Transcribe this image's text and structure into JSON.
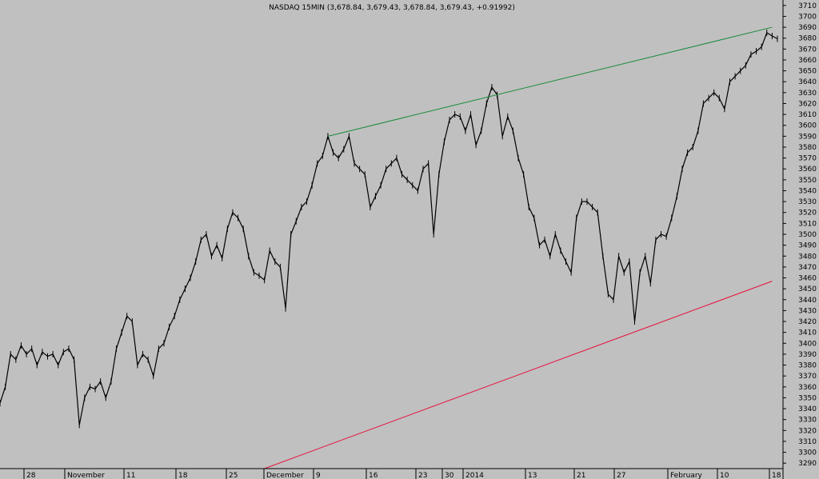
{
  "title": "NASDAQ 15MIN (3,678.84, 3,679.43, 3,678.84, 3,679.43, +0.91992)",
  "chart_data": {
    "type": "line",
    "series": [
      {
        "values": [
          3345,
          3360,
          3390,
          3385,
          3398,
          3390,
          3395,
          3380,
          3392,
          3388,
          3390,
          3380,
          3392,
          3395,
          3385,
          3325,
          3350,
          3360,
          3358,
          3365,
          3350,
          3365,
          3395,
          3410,
          3425,
          3420,
          3380,
          3390,
          3385,
          3370,
          3395,
          3400,
          3415,
          3425,
          3440,
          3450,
          3460,
          3475,
          3495,
          3500,
          3480,
          3490,
          3478,
          3505,
          3520,
          3515,
          3505,
          3480,
          3465,
          3462,
          3458,
          3485,
          3475,
          3470,
          3432,
          3500,
          3512,
          3525,
          3530,
          3545,
          3565,
          3572,
          3590,
          3575,
          3570,
          3578,
          3590,
          3565,
          3560,
          3555,
          3525,
          3535,
          3545,
          3560,
          3565,
          3570,
          3555,
          3550,
          3545,
          3540,
          3560,
          3565,
          3500,
          3555,
          3585,
          3605,
          3610,
          3608,
          3595,
          3610,
          3582,
          3595,
          3620,
          3635,
          3628,
          3590,
          3608,
          3595,
          3570,
          3555,
          3525,
          3515,
          3490,
          3495,
          3480,
          3500,
          3485,
          3475,
          3465,
          3515,
          3530,
          3530,
          3525,
          3520,
          3480,
          3445,
          3440,
          3480,
          3465,
          3475,
          3420,
          3465,
          3480,
          3455,
          3495,
          3500,
          3498,
          3515,
          3535,
          3560,
          3575,
          3580,
          3595,
          3620,
          3625,
          3630,
          3625,
          3615,
          3640,
          3645,
          3650,
          3655,
          3665,
          3668,
          3672,
          3685,
          3682,
          3679.43
        ]
      }
    ],
    "x_tick_labels": [
      "28",
      "November",
      "11",
      "18",
      "25",
      "December",
      "9",
      "16",
      "23",
      "30",
      "2014",
      "13",
      "21",
      "27",
      "February",
      "10",
      "18"
    ],
    "ylim": [
      3285,
      3715
    ],
    "y_ticks": [
      3290,
      3300,
      3310,
      3320,
      3330,
      3340,
      3350,
      3360,
      3370,
      3380,
      3390,
      3400,
      3410,
      3420,
      3430,
      3440,
      3450,
      3460,
      3470,
      3480,
      3490,
      3500,
      3510,
      3520,
      3530,
      3540,
      3550,
      3560,
      3570,
      3580,
      3590,
      3600,
      3610,
      3620,
      3630,
      3640,
      3650,
      3660,
      3670,
      3680,
      3690,
      3700,
      3710
    ],
    "trendlines": [
      {
        "color": "#1a8a3a",
        "start": {
          "x_index": 62,
          "value": 3590
        },
        "end": {
          "x_index": 146,
          "value": 3690
        }
      },
      {
        "color": "#e8103a",
        "start": {
          "x_index": 50,
          "value": 3285
        },
        "end": {
          "x_index": 146,
          "value": 3457
        }
      }
    ],
    "grid": false,
    "colors": {
      "background": "#c0c0c0",
      "price": "#000000"
    }
  }
}
